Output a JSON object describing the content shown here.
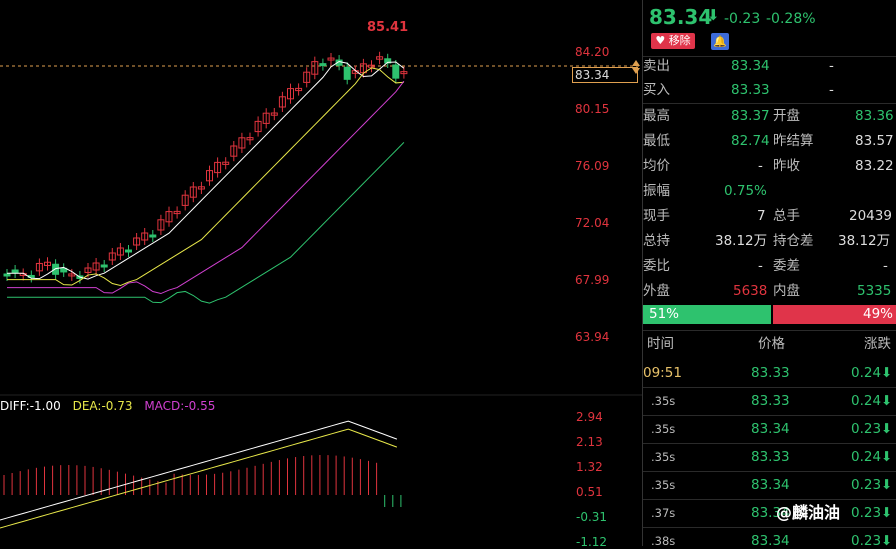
{
  "chart": {
    "high_label": "85.41",
    "price_box": "83.34",
    "y_labels": [
      "84.20",
      "80.15",
      "76.09",
      "72.04",
      "67.99",
      "63.94"
    ],
    "macd_legend": {
      "diff": "DIFF:-1.00",
      "dea": "DEA:-0.73",
      "macd": "MACD:-0.55"
    },
    "macd_labels": [
      "2.94",
      "2.13",
      "1.32",
      "0.51",
      "-0.31",
      "-1.12"
    ],
    "colors": {
      "up": "#e0343e",
      "down": "#2ec26e",
      "bg": "#000000"
    }
  },
  "panel": {
    "price": "83.34",
    "arrow": "⬇",
    "change": "-0.23",
    "change_pct": "-0.28%",
    "remove_label": "移除",
    "bell_icon": "bell-icon",
    "rows": {
      "sell_label": "卖出",
      "sell_price": "83.34",
      "sell_vol": "-",
      "buy_label": "买入",
      "buy_price": "83.33",
      "buy_vol": "-",
      "high_label": "最高",
      "high": "83.37",
      "open_label": "开盘",
      "open": "83.36",
      "low_label": "最低",
      "low": "82.74",
      "prev_settle_label": "昨结算",
      "prev_settle": "83.57",
      "avg_label": "均价",
      "avg": "-",
      "prev_close_label": "昨收",
      "prev_close": "83.22",
      "amp_label": "振幅",
      "amp": "0.75%",
      "cur_vol_label": "现手",
      "cur_vol": "7",
      "total_vol_label": "总手",
      "total_vol": "20439",
      "oi_label": "总持",
      "oi": "38.12万",
      "oi_diff_label": "持仓差",
      "oi_diff": "38.12万",
      "wb_label": "委比",
      "wb": "-",
      "wc_label": "委差",
      "wc": "-",
      "outer_label": "外盘",
      "outer": "5638",
      "inner_label": "内盘",
      "inner": "5335"
    },
    "ratio": {
      "buy": "51%",
      "sell": "49%",
      "buy_frac": 0.51
    },
    "ticks_header": {
      "time": "时间",
      "price": "价格",
      "change": "涨跌"
    },
    "ticks": [
      {
        "time": "09:51",
        "price": "83.33",
        "chg": "0.24"
      },
      {
        "time": ".35s",
        "price": "83.33",
        "chg": "0.24"
      },
      {
        "time": ".35s",
        "price": "83.34",
        "chg": "0.23"
      },
      {
        "time": ".35s",
        "price": "83.33",
        "chg": "0.24"
      },
      {
        "time": ".35s",
        "price": "83.34",
        "chg": "0.23"
      },
      {
        "time": ".37s",
        "price": "83.34",
        "chg": "0.23"
      },
      {
        "time": ".38s",
        "price": "83.34",
        "chg": "0.23"
      }
    ]
  },
  "watermark": "@麟油油"
}
